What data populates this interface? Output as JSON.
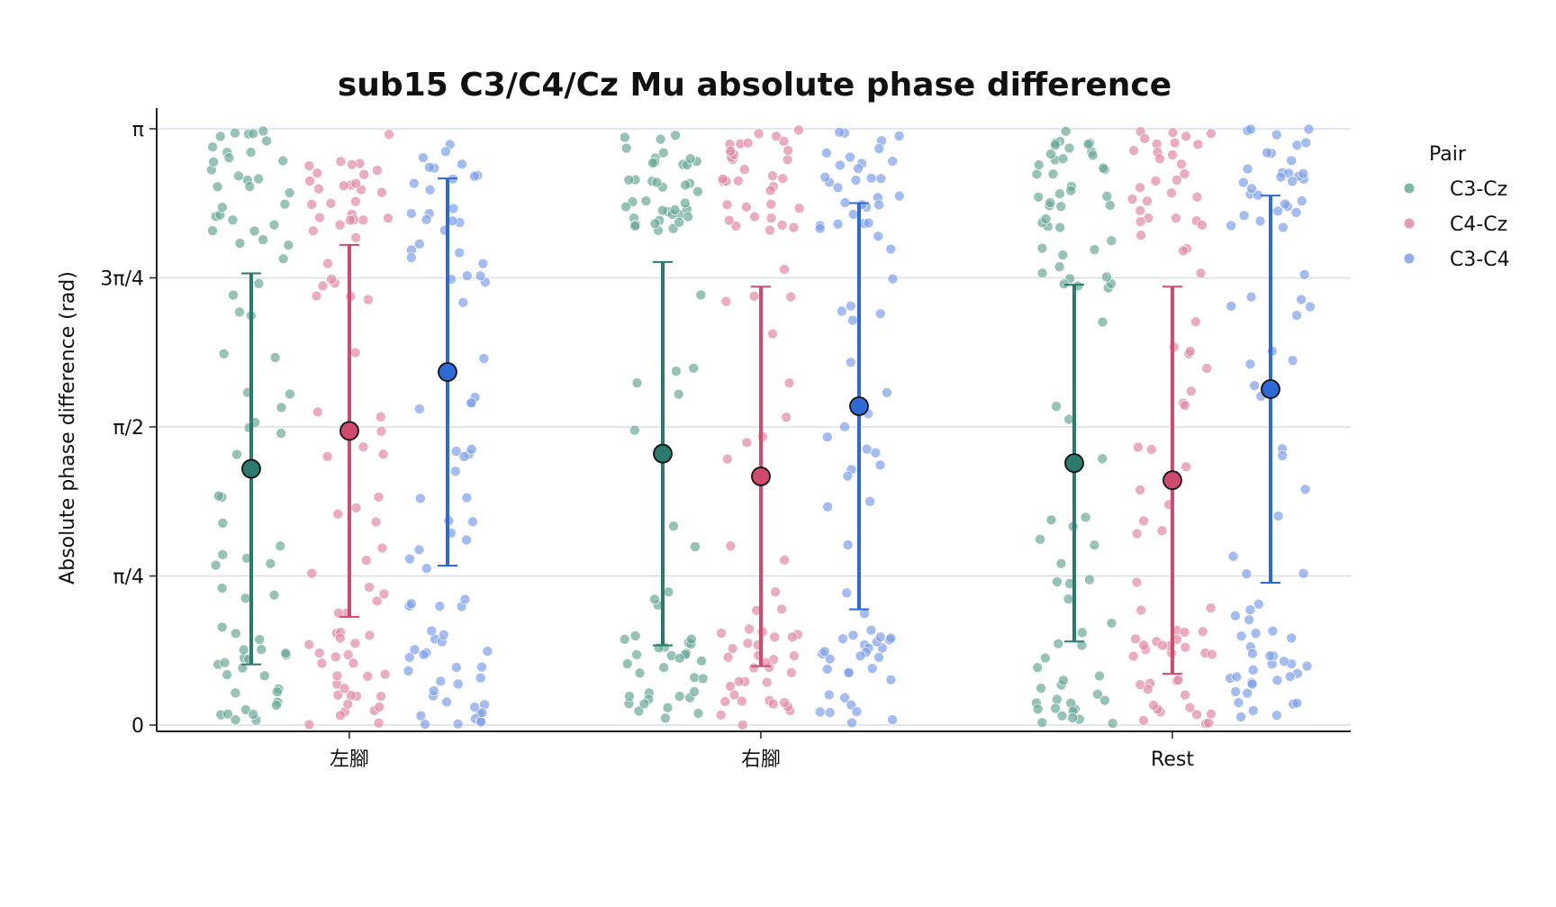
{
  "chart_data": {
    "type": "scatter",
    "title": "sub15 C3/C4/Cz Mu absolute phase difference",
    "ylabel": "Absolute phase difference (rad)",
    "xlabel": "",
    "ylim": [
      0,
      3.14159
    ],
    "y_ticks": [
      {
        "value": 0,
        "label": "0"
      },
      {
        "value": 0.7854,
        "label": "π/4"
      },
      {
        "value": 1.5708,
        "label": "π/2"
      },
      {
        "value": 2.3562,
        "label": "3π/4"
      },
      {
        "value": 3.14159,
        "label": "π"
      }
    ],
    "grid": "horizontal",
    "legend": {
      "title": "Pair",
      "placement": "right"
    },
    "categories": [
      "左腳",
      "右腳",
      "Rest"
    ],
    "series": [
      {
        "name": "C3-Cz",
        "color": "#2a7a6e",
        "point_color": "#6aa898",
        "mean": [
          1.35,
          1.43,
          1.38
        ],
        "sd": [
          1.03,
          1.01,
          0.94
        ]
      },
      {
        "name": "C4-Cz",
        "color": "#cf4a6e",
        "point_color": "#e08aa4",
        "mean": [
          1.55,
          1.31,
          1.29
        ],
        "sd": [
          0.98,
          1.0,
          1.02
        ]
      },
      {
        "name": "C3-C4",
        "color": "#2e6ad6",
        "point_color": "#7ea0e8",
        "mean": [
          1.86,
          1.68,
          1.77
        ],
        "sd": [
          1.02,
          1.07,
          1.02
        ]
      }
    ],
    "points_per_group": 80
  }
}
